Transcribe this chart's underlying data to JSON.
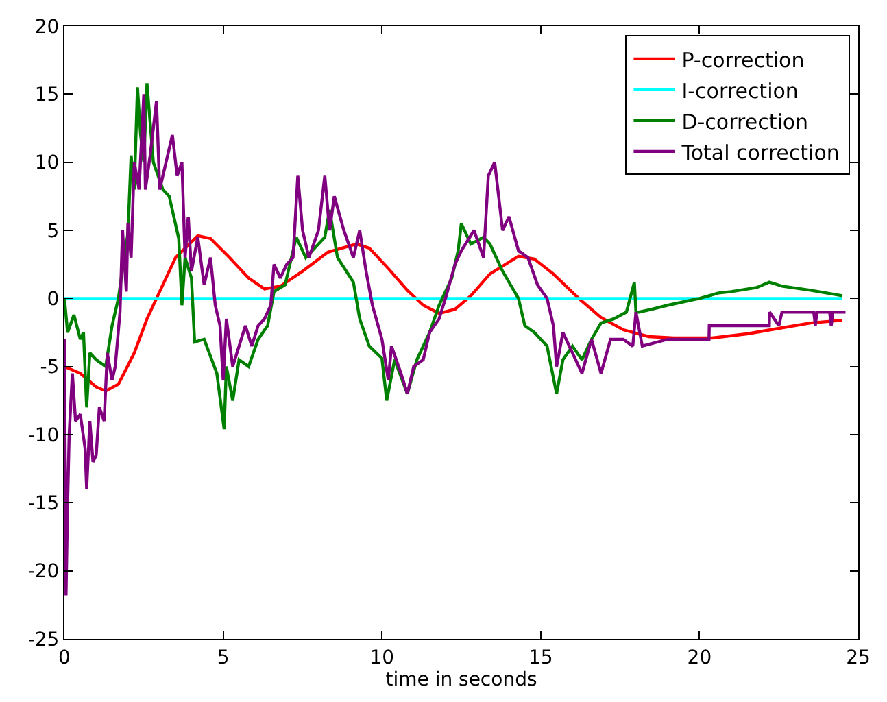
{
  "chart_data": {
    "type": "line",
    "xlabel": "time in seconds",
    "xlim": [
      0,
      25
    ],
    "ylim": [
      -25,
      20
    ],
    "xticks": [
      0,
      5,
      10,
      15,
      20,
      25
    ],
    "yticks": [
      -25,
      -20,
      -15,
      -10,
      -5,
      0,
      5,
      10,
      15,
      20
    ],
    "legend": "top right",
    "marker": "none",
    "line_style": "solid",
    "series": [
      {
        "name": "P-correction",
        "color": "#ff0000",
        "x": [
          0,
          0.5,
          1,
          1.3,
          1.7,
          2.2,
          2.6,
          3,
          3.5,
          4.2,
          4.6,
          5.2,
          5.8,
          6.3,
          6.8,
          7.5,
          8.3,
          9.2,
          9.6,
          10.2,
          10.8,
          11.3,
          11.8,
          12.3,
          12.8,
          13.4,
          14.3,
          14.8,
          15.4,
          16.2,
          16.9,
          17.6,
          18.4,
          19.2,
          20.4,
          21.5,
          22.5,
          23.5,
          24.5
        ],
        "values": [
          -5,
          -5.5,
          -6.5,
          -6.8,
          -6.3,
          -4,
          -1.5,
          0.5,
          3,
          4.6,
          4.4,
          3,
          1.5,
          0.7,
          0.9,
          2,
          3.4,
          4,
          3.7,
          2.2,
          0.6,
          -0.5,
          -1.1,
          -0.8,
          0.2,
          1.8,
          3.1,
          2.9,
          1.8,
          0,
          -1.4,
          -2.3,
          -2.8,
          -2.9,
          -2.9,
          -2.6,
          -2.2,
          -1.8,
          -1.6
        ]
      },
      {
        "name": "I-correction",
        "color": "#00ffff",
        "x": [
          0,
          24.5
        ],
        "values": [
          0,
          0
        ]
      },
      {
        "name": "D-correction",
        "color": "#008000",
        "x": [
          0,
          0.1,
          0.3,
          0.5,
          0.6,
          0.7,
          0.8,
          1.0,
          1.3,
          1.5,
          1.7,
          1.85,
          2.0,
          2.1,
          2.2,
          2.3,
          2.4,
          2.5,
          2.6,
          2.8,
          3.1,
          3.3,
          3.6,
          3.7,
          3.8,
          4.0,
          4.1,
          4.4,
          4.8,
          5.03,
          5.1,
          5.3,
          5.5,
          5.8,
          6.1,
          6.4,
          6.6,
          6.95,
          7.3,
          7.6,
          8.2,
          8.35,
          8.6,
          9.1,
          9.3,
          9.6,
          10.0,
          10.15,
          10.4,
          10.8,
          11.1,
          11.5,
          11.8,
          12.2,
          12.4,
          12.5,
          12.8,
          13.2,
          13.4,
          13.8,
          14.3,
          14.5,
          14.8,
          15.2,
          15.5,
          15.7,
          16.0,
          16.3,
          16.6,
          16.9,
          17.3,
          17.7,
          17.95,
          18.0,
          18.1,
          18.5,
          19.0,
          20.0,
          20.6,
          21.0,
          21.8,
          22.2,
          22.6,
          23.5,
          24.5
        ],
        "values": [
          0,
          -2.5,
          -1.2,
          -3,
          -2.5,
          -8,
          -4,
          -4.5,
          -5,
          -2,
          0,
          2.5,
          4.8,
          10.5,
          8,
          15.5,
          12,
          10,
          15.8,
          10,
          8,
          7.5,
          4.4,
          -0.5,
          3,
          1.5,
          -3.2,
          -3,
          -5.5,
          -9.6,
          -5,
          -7.5,
          -4.5,
          -5,
          -3,
          -2,
          0.5,
          1,
          4.5,
          3,
          4.5,
          6.5,
          3,
          1.2,
          -1.5,
          -3.5,
          -4.4,
          -7.5,
          -4.5,
          -7,
          -4.5,
          -2.5,
          -0.5,
          1.5,
          3.5,
          5.5,
          4,
          4.5,
          4,
          2,
          0,
          -2,
          -2.5,
          -3.5,
          -7,
          -4.5,
          -3.5,
          -4.5,
          -3,
          -1.8,
          -1.5,
          -1,
          1.2,
          -1,
          -1,
          -0.8,
          -0.5,
          0,
          0.4,
          0.5,
          0.8,
          1.2,
          0.9,
          0.6,
          0.2
        ]
      },
      {
        "name": "Total correction",
        "color": "#800080",
        "x": [
          0,
          0.05,
          0.1,
          0.15,
          0.25,
          0.35,
          0.5,
          0.65,
          0.7,
          0.8,
          0.9,
          1.0,
          1.1,
          1.25,
          1.35,
          1.5,
          1.6,
          1.75,
          1.83,
          1.95,
          2.0,
          2.1,
          2.2,
          2.35,
          2.5,
          2.55,
          2.7,
          2.9,
          3.0,
          3.2,
          3.4,
          3.55,
          3.7,
          3.8,
          3.9,
          4.0,
          4.2,
          4.4,
          4.6,
          4.75,
          4.9,
          5.0,
          5.1,
          5.3,
          5.5,
          5.7,
          5.9,
          6.1,
          6.3,
          6.5,
          6.6,
          6.8,
          7.0,
          7.2,
          7.35,
          7.5,
          7.7,
          8.0,
          8.2,
          8.35,
          8.5,
          8.8,
          9.1,
          9.3,
          9.5,
          9.7,
          10.0,
          10.2,
          10.3,
          10.6,
          10.8,
          11.0,
          11.3,
          11.5,
          11.8,
          12.0,
          12.3,
          12.5,
          12.9,
          13.2,
          13.35,
          13.55,
          13.8,
          14.0,
          14.3,
          14.6,
          14.9,
          15.2,
          15.4,
          15.5,
          15.7,
          16.0,
          16.3,
          16.6,
          16.9,
          17.2,
          17.6,
          17.9,
          18.0,
          18.2,
          19.0,
          20.3,
          20.31,
          22.2,
          22.21,
          22.5,
          22.6,
          23.6,
          23.65,
          23.7,
          24.1,
          24.15,
          24.2,
          24.6
        ],
        "values": [
          -3,
          -21.8,
          -15,
          -10,
          -5.5,
          -9,
          -8.5,
          -11,
          -14,
          -9,
          -12,
          -11.5,
          -8,
          -9,
          -4,
          -6,
          -5,
          -1,
          5,
          0.5,
          5.5,
          3,
          10,
          8,
          15,
          8,
          10.5,
          14.5,
          8,
          10,
          12,
          9,
          10,
          3,
          6,
          2,
          4.5,
          1,
          3,
          -0.5,
          -2,
          -6,
          -1.5,
          -5,
          -3.5,
          -2,
          -3.5,
          -2,
          -1.5,
          -0.5,
          2.5,
          1.5,
          2.5,
          3,
          9,
          5,
          3,
          5,
          9,
          5,
          7.5,
          5,
          3,
          5,
          2,
          -0.5,
          -3,
          -6,
          -3.5,
          -5.5,
          -7,
          -5,
          -4.5,
          -2.5,
          -1.5,
          0,
          2.5,
          3.5,
          5,
          3,
          9,
          10,
          5,
          6,
          3.5,
          3,
          1,
          0,
          -2,
          -5,
          -2.5,
          -4,
          -5.5,
          -3,
          -5.5,
          -3,
          -3,
          -3.5,
          -1,
          -3.5,
          -3,
          -3,
          -2,
          -2,
          -1,
          -2,
          -1,
          -1,
          -2,
          -1,
          -1,
          -2,
          -1,
          -1
        ]
      }
    ]
  }
}
